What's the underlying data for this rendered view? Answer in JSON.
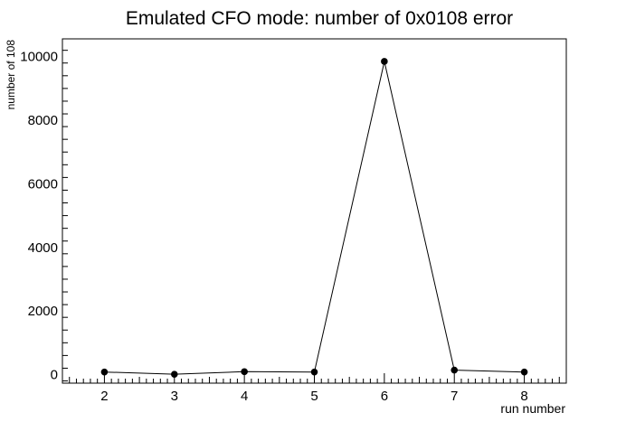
{
  "chart_data": {
    "type": "line",
    "title": "Emulated CFO mode: number of 0x0108 error",
    "xlabel": "run number",
    "ylabel": "number of 108",
    "x": [
      2,
      3,
      4,
      5,
      6,
      7,
      8
    ],
    "y": [
      80,
      10,
      90,
      80,
      9850,
      140,
      80
    ],
    "xlim": [
      1.4,
      8.6
    ],
    "ylim": [
      -270,
      10560
    ],
    "xticks": [
      "2",
      "3",
      "4",
      "5",
      "6",
      "7",
      "8"
    ],
    "yticks": [
      "0",
      "2000",
      "4000",
      "6000",
      "8000",
      "10000"
    ],
    "grid": false,
    "legend": "none",
    "marker": "filled-circle",
    "line_color": "#000000"
  }
}
